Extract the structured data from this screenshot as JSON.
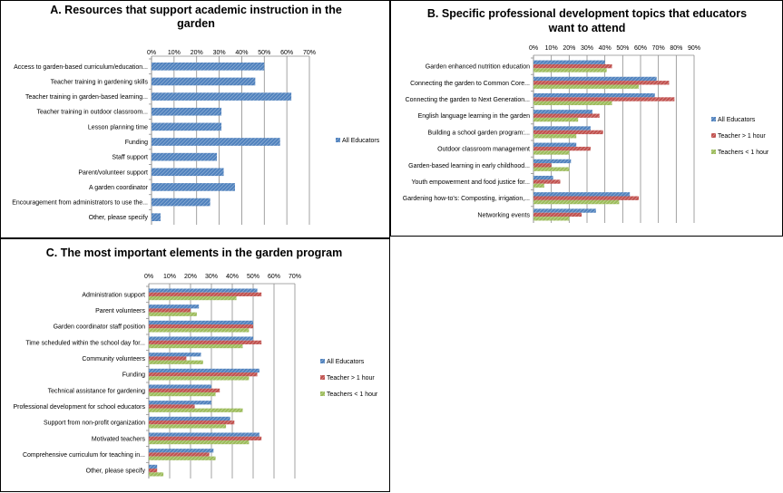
{
  "palette": {
    "All Educators": "#4f81bd",
    "Teacher > 1 hour": "#c0504d",
    "Teachers < 1 hour": "#9bbb59"
  },
  "chart_data": [
    {
      "id": "A",
      "type": "bar",
      "orientation": "horizontal",
      "title": [
        "A. Resources that support academic instruction in the",
        "garden"
      ],
      "xlim": [
        0,
        70
      ],
      "ticks": [
        "0%",
        "10%",
        "20%",
        "30%",
        "40%",
        "50%",
        "60%",
        "70%"
      ],
      "grid": true,
      "legend_position": "right",
      "categories": [
        "Access to garden-based curriculum/education...",
        "Teacher training in gardening skills",
        "Teacher training in garden-based learning...",
        "Teacher training in outdoor classroom...",
        "Lesson planning time",
        "Funding",
        "Staff support",
        "Parent/volunteer support",
        "A garden coordinator",
        "Encouragement from administrators to use the...",
        "Other, please specify"
      ],
      "series": [
        {
          "name": "All Educators",
          "values": [
            50,
            46,
            62,
            31,
            31,
            57,
            29,
            32,
            37,
            26,
            4
          ]
        }
      ]
    },
    {
      "id": "B",
      "type": "bar",
      "orientation": "horizontal",
      "title": [
        "B. Specific professional development topics that educators",
        "want to attend"
      ],
      "xlim": [
        0,
        90
      ],
      "ticks": [
        "0%",
        "10%",
        "20%",
        "30%",
        "40%",
        "50%",
        "60%",
        "70%",
        "80%",
        "90%"
      ],
      "grid": true,
      "legend_position": "right",
      "categories": [
        "Garden enhanced nutrition education",
        "Connecting the garden to Common Core...",
        "Connecting the garden to Next Generation...",
        "English language learning in the garden",
        "Building a school garden program:...",
        "Outdoor classroom management",
        "Garden-based learning in early childhood...",
        "Youth empowerment and food justice for...",
        "Gardening how-to's: Composting, irrigation,...",
        "Networking events"
      ],
      "series": [
        {
          "name": "All Educators",
          "values": [
            40,
            69,
            68,
            33,
            32,
            24,
            21,
            11,
            54,
            35
          ]
        },
        {
          "name": "Teacher > 1 hour",
          "values": [
            44,
            76,
            79,
            37,
            39,
            32,
            10,
            15,
            59,
            27
          ]
        },
        {
          "name": "Teachers < 1 hour",
          "values": [
            41,
            59,
            44,
            25,
            24,
            20,
            20,
            6,
            48,
            20
          ]
        }
      ]
    },
    {
      "id": "C",
      "type": "bar",
      "orientation": "horizontal",
      "title": [
        "C. The most important elements in the garden program"
      ],
      "xlim": [
        0,
        70
      ],
      "ticks": [
        "0%",
        "10%",
        "20%",
        "30%",
        "40%",
        "50%",
        "60%",
        "70%"
      ],
      "grid": true,
      "legend_position": "right",
      "categories": [
        "Administration support",
        "Parent volunteers",
        "Garden coordinator staff position",
        "Time scheduled within the school day for...",
        "Community volunteers",
        "Funding",
        "Technical assistance for gardening",
        "Professional development for school educators",
        "Support from non-profit organization",
        "Motivated teachers",
        "Comprehensive curriculum for teaching in...",
        "Other, please specify"
      ],
      "series": [
        {
          "name": "All Educators",
          "values": [
            52,
            24,
            50,
            50,
            25,
            53,
            30,
            30,
            39,
            53,
            31,
            4
          ]
        },
        {
          "name": "Teacher > 1 hour",
          "values": [
            54,
            20,
            50,
            54,
            18,
            52,
            34,
            22,
            41,
            54,
            29,
            4
          ]
        },
        {
          "name": "Teachers < 1 hour",
          "values": [
            42,
            23,
            48,
            45,
            26,
            48,
            32,
            45,
            37,
            48,
            32,
            7
          ]
        }
      ]
    }
  ]
}
